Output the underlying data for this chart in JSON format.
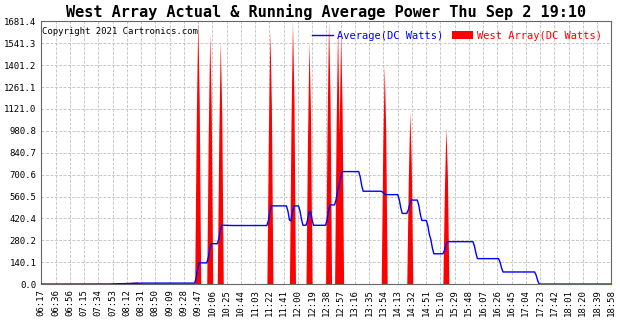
{
  "title": "West Array Actual & Running Average Power Thu Sep 2 19:10",
  "copyright": "Copyright 2021 Cartronics.com",
  "legend_avg": "Average(DC Watts)",
  "legend_west": "West Array(DC Watts)",
  "ytick_labels": [
    "0.0",
    "140.1",
    "280.2",
    "420.4",
    "560.5",
    "700.6",
    "840.7",
    "980.8",
    "1121.0",
    "1261.1",
    "1401.2",
    "1541.3",
    "1681.4"
  ],
  "xtick_labels": [
    "06:17",
    "06:36",
    "06:56",
    "07:15",
    "07:34",
    "07:53",
    "08:12",
    "08:31",
    "08:50",
    "09:09",
    "09:28",
    "09:47",
    "10:06",
    "10:25",
    "10:44",
    "11:03",
    "11:22",
    "11:41",
    "12:00",
    "12:19",
    "12:38",
    "12:57",
    "13:16",
    "13:35",
    "13:54",
    "14:13",
    "14:32",
    "14:51",
    "15:10",
    "15:29",
    "15:48",
    "16:07",
    "16:26",
    "16:45",
    "17:04",
    "17:23",
    "17:42",
    "18:01",
    "18:20",
    "18:39",
    "18:58"
  ],
  "background_color": "#ffffff",
  "fill_color": "#ff0000",
  "line_color": "#0000ff",
  "grid_color": "#bbbbbb",
  "title_color": "#000000",
  "copyright_color": "#000000",
  "title_fontsize": 11,
  "legend_fontsize": 7.5,
  "tick_fontsize": 6.5,
  "copyright_fontsize": 6.5
}
